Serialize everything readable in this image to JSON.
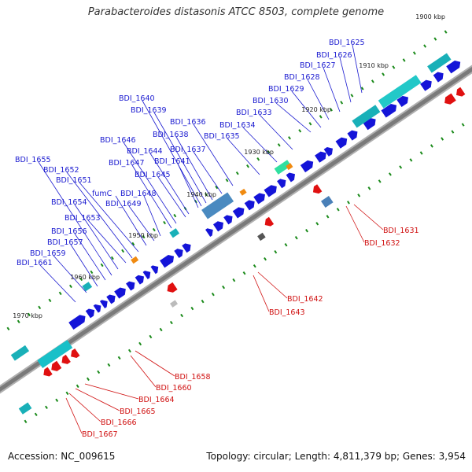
{
  "title": "Parabacteroides distasonis ATCC 8503, complete genome",
  "accession_text": "Accession: NC_009615",
  "stats_text": "Topology: circular; Length: 4,811,379 bp; Genes: 3,954",
  "colors": {
    "forward_cds": "#1414d8",
    "reverse_cds": "#e01010",
    "rna": "#19b0b8",
    "backbone": "#7a7a7a",
    "forward_label": "#1a1ad0",
    "reverse_label": "#d01010",
    "tick": "#1a8a1a"
  },
  "kbp_marks": [
    "1900 kbp",
    "1910 kbp",
    "1920 kbp",
    "1930 kbp",
    "1940 kbp",
    "1950 kbp",
    "1960 kbp",
    "1970 kbp"
  ],
  "forward_labels": [
    "BDI_1625",
    "BDI_1626",
    "BDI_1627",
    "BDI_1628",
    "BDI_1629",
    "BDI_1630",
    "BDI_1633",
    "BDI_1634",
    "BDI_1635",
    "BDI_1636",
    "BDI_1637",
    "BDI_1638",
    "BDI_1639",
    "BDI_1640",
    "BDI_1641",
    "BDI_1644",
    "BDI_1645",
    "BDI_1646",
    "BDI_1647",
    "BDI_1648",
    "BDI_1649",
    "fumC",
    "BDI_1651",
    "BDI_1652",
    "BDI_1653",
    "BDI_1654",
    "BDI_1655",
    "BDI_1656",
    "BDI_1657",
    "BDI_1659",
    "BDI_1661"
  ],
  "reverse_labels": [
    "BDI_1631",
    "BDI_1632",
    "BDI_1642",
    "BDI_1643",
    "BDI_1658",
    "BDI_1660",
    "BDI_1664",
    "BDI_1665",
    "BDI_1666",
    "BDI_1667"
  ]
}
